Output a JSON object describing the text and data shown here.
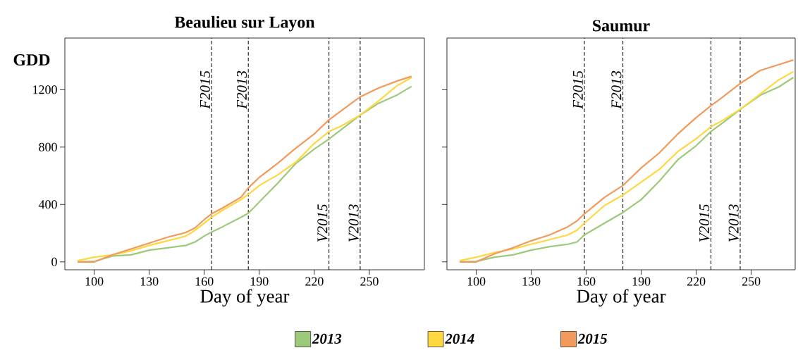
{
  "chart_data": [
    {
      "type": "line",
      "title": "Beaulieu sur Layon",
      "xlabel": "Day of year",
      "ylabel": "GDD",
      "legend": "bottom",
      "x": [
        91,
        100,
        110,
        120,
        130,
        140,
        150,
        155,
        160,
        164,
        170,
        180,
        184,
        190,
        200,
        210,
        220,
        228,
        235,
        245,
        255,
        265,
        273
      ],
      "series": [
        {
          "name": "2013",
          "color": "#9dc97a",
          "values": [
            0,
            3,
            41,
            49,
            82,
            98,
            115,
            139,
            180,
            208,
            245,
            311,
            339,
            417,
            548,
            687,
            786,
            856,
            925,
            1023,
            1105,
            1162,
            1223
          ]
        },
        {
          "name": "2014",
          "color": "#ffd740",
          "values": [
            8,
            33,
            49,
            77,
            115,
            147,
            180,
            220,
            270,
            311,
            360,
            434,
            470,
            532,
            606,
            696,
            826,
            908,
            949,
            1023,
            1121,
            1227,
            1285
          ]
        },
        {
          "name": "2015",
          "color": "#f19a5c",
          "values": [
            0,
            0,
            49,
            90,
            131,
            172,
            205,
            237,
            295,
            335,
            376,
            450,
            515,
            589,
            687,
            794,
            892,
            990,
            1056,
            1150,
            1211,
            1260,
            1293
          ]
        }
      ],
      "xlim": [
        84,
        280
      ],
      "ylim": [
        -55,
        1560
      ],
      "xticks": [
        100,
        130,
        160,
        190,
        220,
        250
      ],
      "yticks": [
        0,
        400,
        800,
        1200
      ],
      "ref_lines": [
        {
          "axis": "x",
          "value": 164,
          "line_style": "dashed",
          "color": "#000000"
        },
        {
          "axis": "x",
          "value": 184,
          "line_style": "dashed",
          "color": "#000000"
        },
        {
          "axis": "x",
          "value": 228,
          "line_style": "dashed",
          "color": "#000000"
        },
        {
          "axis": "x",
          "value": 245,
          "line_style": "dashed",
          "color": "#000000"
        }
      ],
      "annotations": [
        {
          "text": "F2015",
          "x": 164,
          "y": 1200
        },
        {
          "text": "F2013",
          "x": 184,
          "y": 1200
        },
        {
          "text": "V2015",
          "x": 228,
          "y": 270
        },
        {
          "text": "V2013",
          "x": 245,
          "y": 270
        }
      ]
    },
    {
      "type": "line",
      "title": "Saumur",
      "xlabel": "Day of year",
      "tick_labels": "x",
      "x": [
        91,
        100,
        110,
        120,
        130,
        140,
        150,
        155,
        159,
        170,
        180,
        190,
        200,
        210,
        220,
        228,
        235,
        245,
        255,
        265,
        273
      ],
      "series": [
        {
          "color": "#9dc97a",
          "values": [
            0,
            3,
            33,
            49,
            82,
            106,
            123,
            139,
            188,
            270,
            344,
            434,
            565,
            712,
            810,
            908,
            974,
            1072,
            1162,
            1219,
            1285
          ]
        },
        {
          "color": "#ffd740",
          "values": [
            8,
            33,
            65,
            90,
            123,
            155,
            188,
            221,
            270,
            393,
            466,
            556,
            646,
            769,
            859,
            941,
            990,
            1072,
            1170,
            1268,
            1326
          ]
        },
        {
          "color": "#f19a5c",
          "values": [
            0,
            0,
            57,
            98,
            147,
            188,
            245,
            286,
            335,
            450,
            532,
            655,
            761,
            892,
            1006,
            1088,
            1154,
            1252,
            1334,
            1375,
            1407
          ]
        }
      ],
      "xlim": [
        84,
        274
      ],
      "ylim": [
        -55,
        1560
      ],
      "xticks": [
        100,
        130,
        160,
        190,
        220,
        250
      ],
      "yticks": [
        0,
        400,
        800,
        1200
      ],
      "ref_lines": [
        {
          "axis": "x",
          "value": 159,
          "line_style": "dashed",
          "color": "#000000"
        },
        {
          "axis": "x",
          "value": 180,
          "line_style": "dashed",
          "color": "#000000"
        },
        {
          "axis": "x",
          "value": 228,
          "line_style": "dashed",
          "color": "#000000"
        },
        {
          "axis": "x",
          "value": 244,
          "line_style": "dashed",
          "color": "#000000"
        }
      ],
      "annotations": [
        {
          "text": "F2015",
          "x": 159,
          "y": 1200
        },
        {
          "text": "F2013",
          "x": 180,
          "y": 1200
        },
        {
          "text": "V2015",
          "x": 228,
          "y": 270
        },
        {
          "text": "V2013",
          "x": 244,
          "y": 270
        }
      ]
    }
  ]
}
